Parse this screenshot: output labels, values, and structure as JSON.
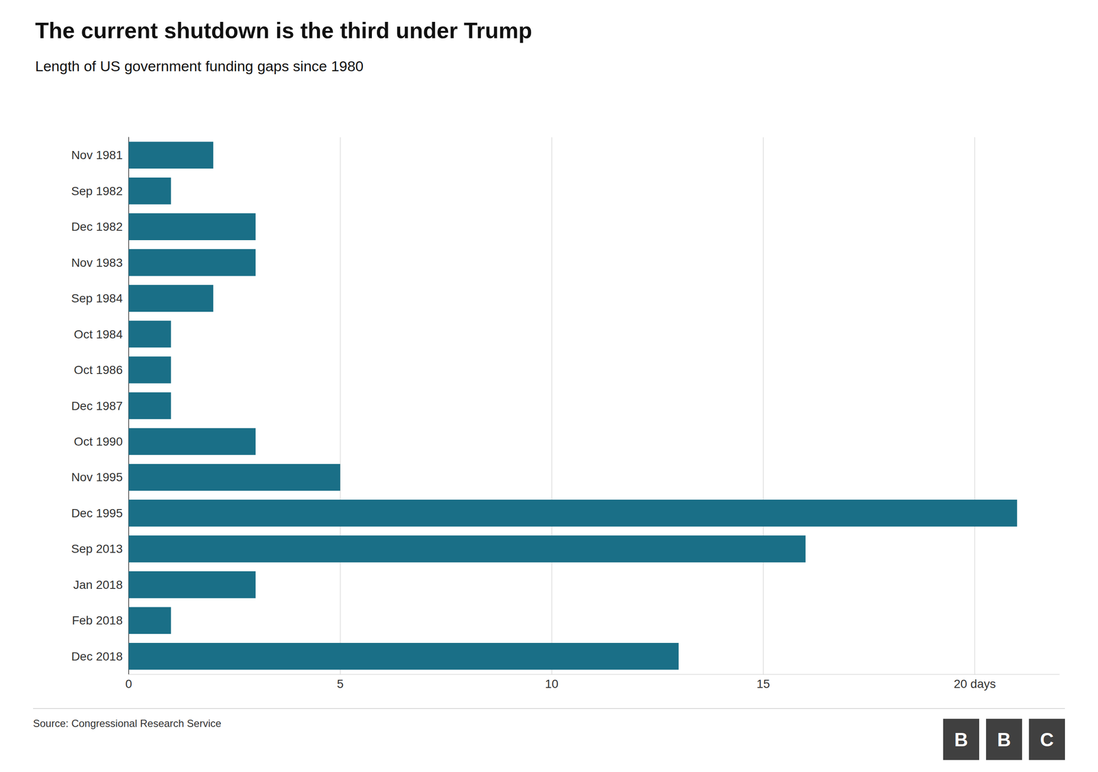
{
  "chart_data": {
    "type": "bar",
    "orientation": "horizontal",
    "title": "The current shutdown is the third under Trump",
    "subtitle": "Length of US government funding gaps since 1980",
    "source": "Source: Congressional Research Service",
    "annotations": [
      "B",
      "B",
      "C"
    ],
    "categories": [
      "Nov 1981",
      "Sep 1982",
      "Dec 1982",
      "Nov 1983",
      "Sep 1984",
      "Oct 1984",
      "Oct 1986",
      "Dec 1987",
      "Oct 1990",
      "Nov 1995",
      "Dec 1995",
      "Sep 2013",
      "Jan 2018",
      "Feb 2018",
      "Dec 2018"
    ],
    "values": [
      2,
      1,
      3,
      3,
      2,
      1,
      1,
      1,
      3,
      5,
      21,
      16,
      3,
      1,
      13
    ],
    "color": "#1a6f87",
    "xlim": [
      0,
      22
    ],
    "xticks": [
      0,
      5,
      10,
      15,
      {
        "value": 20,
        "label": "20 days"
      }
    ],
    "grid": true
  }
}
